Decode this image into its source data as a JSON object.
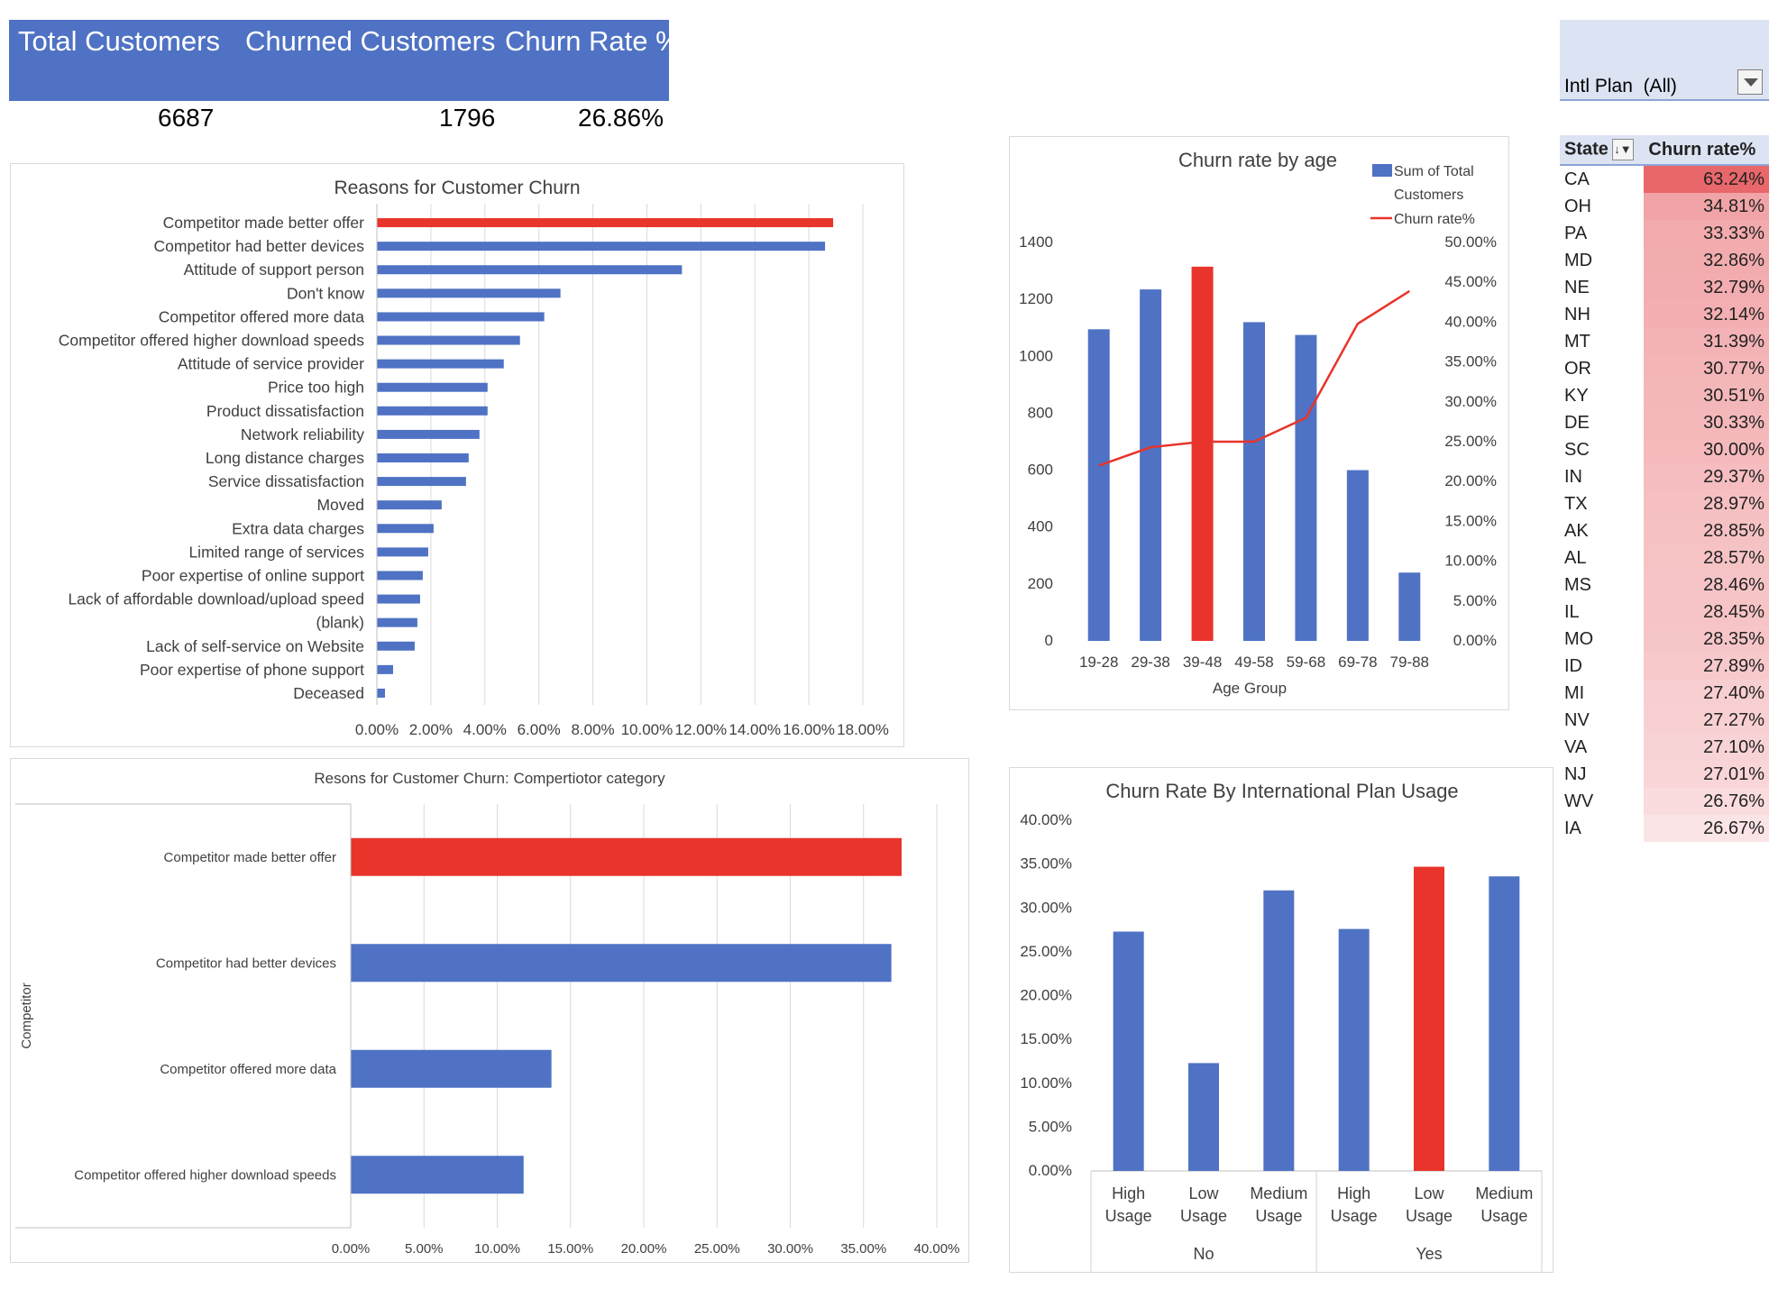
{
  "kpis": {
    "total_customers": {
      "label": "Total Customers",
      "value": "6687"
    },
    "churned_customers": {
      "label": "Churned Customers",
      "value": "1796"
    },
    "churn_rate": {
      "label": "Churn Rate %",
      "value": "26.86%"
    }
  },
  "filter": {
    "label": "Intl Plan",
    "value": "(All)"
  },
  "pivot": {
    "header_state": "State",
    "header_rate": "Churn rate%",
    "rows": [
      {
        "state": "CA",
        "rate": "63.24%",
        "value": 63.24
      },
      {
        "state": "OH",
        "rate": "34.81%",
        "value": 34.81
      },
      {
        "state": "PA",
        "rate": "33.33%",
        "value": 33.33
      },
      {
        "state": "MD",
        "rate": "32.86%",
        "value": 32.86
      },
      {
        "state": "NE",
        "rate": "32.79%",
        "value": 32.79
      },
      {
        "state": "NH",
        "rate": "32.14%",
        "value": 32.14
      },
      {
        "state": "MT",
        "rate": "31.39%",
        "value": 31.39
      },
      {
        "state": "OR",
        "rate": "30.77%",
        "value": 30.77
      },
      {
        "state": "KY",
        "rate": "30.51%",
        "value": 30.51
      },
      {
        "state": "DE",
        "rate": "30.33%",
        "value": 30.33
      },
      {
        "state": "SC",
        "rate": "30.00%",
        "value": 30.0
      },
      {
        "state": "IN",
        "rate": "29.37%",
        "value": 29.37
      },
      {
        "state": "TX",
        "rate": "28.97%",
        "value": 28.97
      },
      {
        "state": "AK",
        "rate": "28.85%",
        "value": 28.85
      },
      {
        "state": "AL",
        "rate": "28.57%",
        "value": 28.57
      },
      {
        "state": "MS",
        "rate": "28.46%",
        "value": 28.46
      },
      {
        "state": "IL",
        "rate": "28.45%",
        "value": 28.45
      },
      {
        "state": "MO",
        "rate": "28.35%",
        "value": 28.35
      },
      {
        "state": "ID",
        "rate": "27.89%",
        "value": 27.89
      },
      {
        "state": "MI",
        "rate": "27.40%",
        "value": 27.4
      },
      {
        "state": "NV",
        "rate": "27.27%",
        "value": 27.27
      },
      {
        "state": "VA",
        "rate": "27.10%",
        "value": 27.1
      },
      {
        "state": "NJ",
        "rate": "27.01%",
        "value": 27.01
      },
      {
        "state": "WV",
        "rate": "26.76%",
        "value": 26.76
      },
      {
        "state": "IA",
        "rate": "26.67%",
        "value": 26.67
      }
    ]
  },
  "colors": {
    "bar": "#4f72c4",
    "highlight": "#e8342a",
    "line": "#e8342a",
    "header": "#4f72c4",
    "grid": "#d9d9d9",
    "heat_high": "#e8676a",
    "heat_low": "#fbe4e6"
  },
  "chart_data": [
    {
      "id": "reasons",
      "type": "bar",
      "orientation": "horizontal",
      "title": "Reasons for Customer Churn",
      "categories": [
        "Competitor made better offer",
        "Competitor had better devices",
        "Attitude of support person",
        "Don't know",
        "Competitor offered more data",
        "Competitor offered higher download speeds",
        "Attitude of service provider",
        "Price too high",
        "Product dissatisfaction",
        "Network reliability",
        "Long distance charges",
        "Service dissatisfaction",
        "Moved",
        "Extra data charges",
        "Limited range of services",
        "Poor expertise of online support",
        "Lack of affordable download/upload speed",
        "(blank)",
        "Lack of self-service on Website",
        "Poor expertise of phone support",
        "Deceased"
      ],
      "values": [
        16.9,
        16.6,
        11.3,
        6.8,
        6.2,
        5.3,
        4.7,
        4.1,
        4.1,
        3.8,
        3.4,
        3.3,
        2.4,
        2.1,
        1.9,
        1.7,
        1.6,
        1.5,
        1.4,
        0.6,
        0.3
      ],
      "highlight": [
        0
      ],
      "xlim": [
        0,
        18
      ],
      "ticks": [
        "0.00%",
        "2.00%",
        "4.00%",
        "6.00%",
        "8.00%",
        "10.00%",
        "12.00%",
        "14.00%",
        "16.00%",
        "18.00%"
      ],
      "grid": true
    },
    {
      "id": "competitor",
      "type": "bar",
      "orientation": "horizontal",
      "title": "Resons for Customer Churn: Compertiotor category",
      "ylabel": "Competitor",
      "categories": [
        "Competitor made better offer",
        "Competitor had better devices",
        "Competitor offered more data",
        "Competitor offered higher download speeds"
      ],
      "values": [
        37.6,
        36.9,
        13.7,
        11.8
      ],
      "highlight": [
        0
      ],
      "xlim": [
        0,
        40
      ],
      "ticks": [
        "0.00%",
        "5.00%",
        "10.00%",
        "15.00%",
        "20.00%",
        "25.00%",
        "30.00%",
        "35.00%",
        "40.00%"
      ],
      "grid": true
    },
    {
      "id": "age",
      "type": "bar",
      "title": "Churn rate by age",
      "xlabel": "Age Group",
      "categories": [
        "19-28",
        "29-38",
        "39-48",
        "49-58",
        "59-68",
        "69-78",
        "79-88"
      ],
      "series": [
        {
          "name": "Sum of Total Customers",
          "type": "bar",
          "values": [
            1095,
            1235,
            1315,
            1120,
            1075,
            600,
            240
          ],
          "highlight": [
            2
          ]
        },
        {
          "name": "Churn rate%",
          "type": "line",
          "axis": "right",
          "values": [
            22.0,
            24.3,
            25.0,
            25.0,
            28.0,
            39.8,
            43.9
          ]
        }
      ],
      "ylim": [
        0,
        1400
      ],
      "y_ticks": [
        "0",
        "200",
        "400",
        "600",
        "800",
        "1000",
        "1200",
        "1400"
      ],
      "y2lim": [
        0,
        50
      ],
      "y2_ticks": [
        "0.00%",
        "5.00%",
        "10.00%",
        "15.00%",
        "20.00%",
        "25.00%",
        "30.00%",
        "35.00%",
        "40.00%",
        "45.00%",
        "50.00%"
      ],
      "legend": "top-right",
      "grid": false
    },
    {
      "id": "intl",
      "type": "bar",
      "title": "Churn Rate By International Plan Usage",
      "groups": [
        {
          "name": "No",
          "categories": [
            [
              "High",
              "Usage"
            ],
            [
              "Low",
              "Usage"
            ],
            [
              "Medium",
              "Usage"
            ]
          ],
          "values": [
            27.3,
            12.3,
            32.0
          ]
        },
        {
          "name": "Yes",
          "categories": [
            [
              "High",
              "Usage"
            ],
            [
              "Low",
              "Usage"
            ],
            [
              "Medium",
              "Usage"
            ]
          ],
          "values": [
            27.6,
            34.7,
            33.6
          ]
        }
      ],
      "highlight": [
        4
      ],
      "ylim": [
        0,
        40
      ],
      "y_ticks": [
        "0.00%",
        "5.00%",
        "10.00%",
        "15.00%",
        "20.00%",
        "25.00%",
        "30.00%",
        "35.00%",
        "40.00%"
      ],
      "grid": false
    }
  ]
}
